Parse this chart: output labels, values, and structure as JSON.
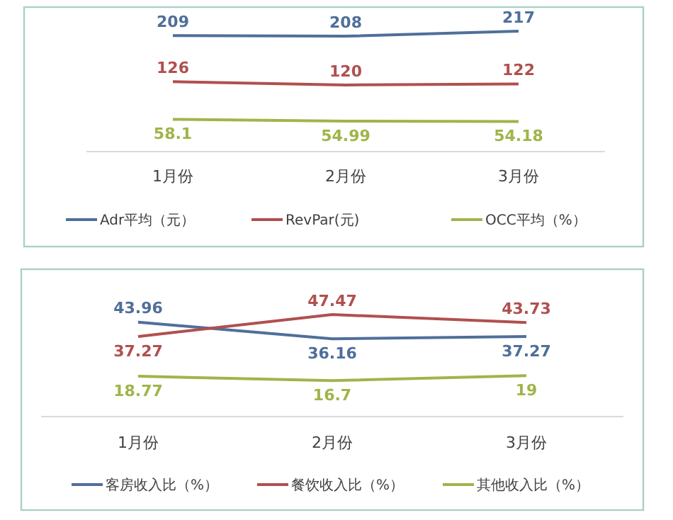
{
  "chart_data": [
    {
      "type": "line",
      "categories": [
        "1月份",
        "2月份",
        "3月份"
      ],
      "data_labels": true,
      "legend": "bottom",
      "series": [
        {
          "name": "Adr平均（元）",
          "color": "#4f6f9a",
          "values": [
            209,
            208,
            217
          ]
        },
        {
          "name": "RevPar(元)",
          "color": "#b0504f",
          "values": [
            126,
            120,
            122
          ]
        },
        {
          "name": "OCC平均（%）",
          "color": "#9fb54a",
          "values": [
            58.1,
            54.99,
            54.18
          ]
        }
      ]
    },
    {
      "type": "line",
      "categories": [
        "1月份",
        "2月份",
        "3月份"
      ],
      "data_labels": true,
      "legend": "bottom",
      "series": [
        {
          "name": "客房收入比（%）",
          "color": "#4f6f9a",
          "values": [
            43.96,
            36.16,
            37.27
          ]
        },
        {
          "name": "餐饮收入比（%）",
          "color": "#b0504f",
          "values": [
            37.27,
            47.47,
            43.73
          ]
        },
        {
          "name": "其他收入比（%）",
          "color": "#9fb54a",
          "values": [
            18.77,
            16.7,
            19
          ]
        }
      ]
    }
  ]
}
